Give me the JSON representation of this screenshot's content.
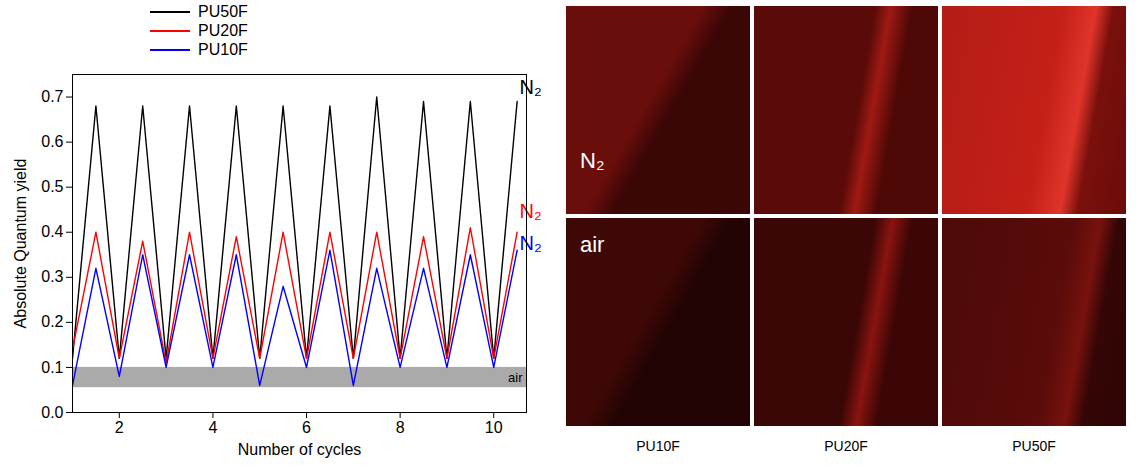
{
  "chart_data": {
    "type": "line",
    "xlabel": "Number of cycles",
    "ylabel": "Absolute Quantum yield",
    "xlim": [
      1,
      10.7
    ],
    "xticks": [
      2,
      4,
      6,
      8,
      10
    ],
    "ylim": [
      0,
      0.75
    ],
    "yticks": [
      {
        "value": 0,
        "label": "0.0"
      },
      0.1,
      0.2,
      0.3,
      0.4,
      0.5,
      0.6,
      0.7
    ],
    "legend": "top-left",
    "x": [
      1,
      1.5,
      2,
      2.5,
      3,
      3.5,
      4,
      4.5,
      5,
      5.5,
      6,
      6.5,
      7,
      7.5,
      8,
      8.5,
      9,
      9.5,
      10,
      10.5
    ],
    "series": [
      {
        "name": "PU50F",
        "color": "#000000",
        "values": [
          0.12,
          0.68,
          0.12,
          0.68,
          0.12,
          0.68,
          0.12,
          0.68,
          0.12,
          0.68,
          0.12,
          0.68,
          0.12,
          0.7,
          0.12,
          0.69,
          0.12,
          0.69,
          0.12,
          0.69
        ]
      },
      {
        "name": "PU20F",
        "color": "#ff0000",
        "values": [
          0.14,
          0.4,
          0.12,
          0.38,
          0.11,
          0.4,
          0.12,
          0.39,
          0.12,
          0.4,
          0.12,
          0.4,
          0.12,
          0.4,
          0.12,
          0.39,
          0.12,
          0.41,
          0.12,
          0.4
        ]
      },
      {
        "name": "PU10F",
        "color": "#0000ff",
        "values": [
          0.06,
          0.32,
          0.08,
          0.35,
          0.1,
          0.35,
          0.1,
          0.35,
          0.06,
          0.28,
          0.1,
          0.36,
          0.06,
          0.32,
          0.1,
          0.32,
          0.1,
          0.35,
          0.1,
          0.36
        ]
      }
    ],
    "bands": [
      {
        "y1": 0.055,
        "y2": 0.1,
        "label": "air",
        "color": "#aaaaaa"
      }
    ],
    "annotations": [
      {
        "text": "N₂",
        "x": 10.55,
        "y": 0.72,
        "color": "#000000"
      },
      {
        "text": "N₂",
        "x": 10.55,
        "y": 0.445,
        "color": "#ff0000"
      },
      {
        "text": "N₂",
        "x": 10.55,
        "y": 0.375,
        "color": "#0000ff"
      }
    ]
  },
  "micrographs": {
    "columns": [
      "PU10F",
      "PU20F",
      "PU50F"
    ],
    "rows": [
      "N₂",
      "air"
    ]
  }
}
